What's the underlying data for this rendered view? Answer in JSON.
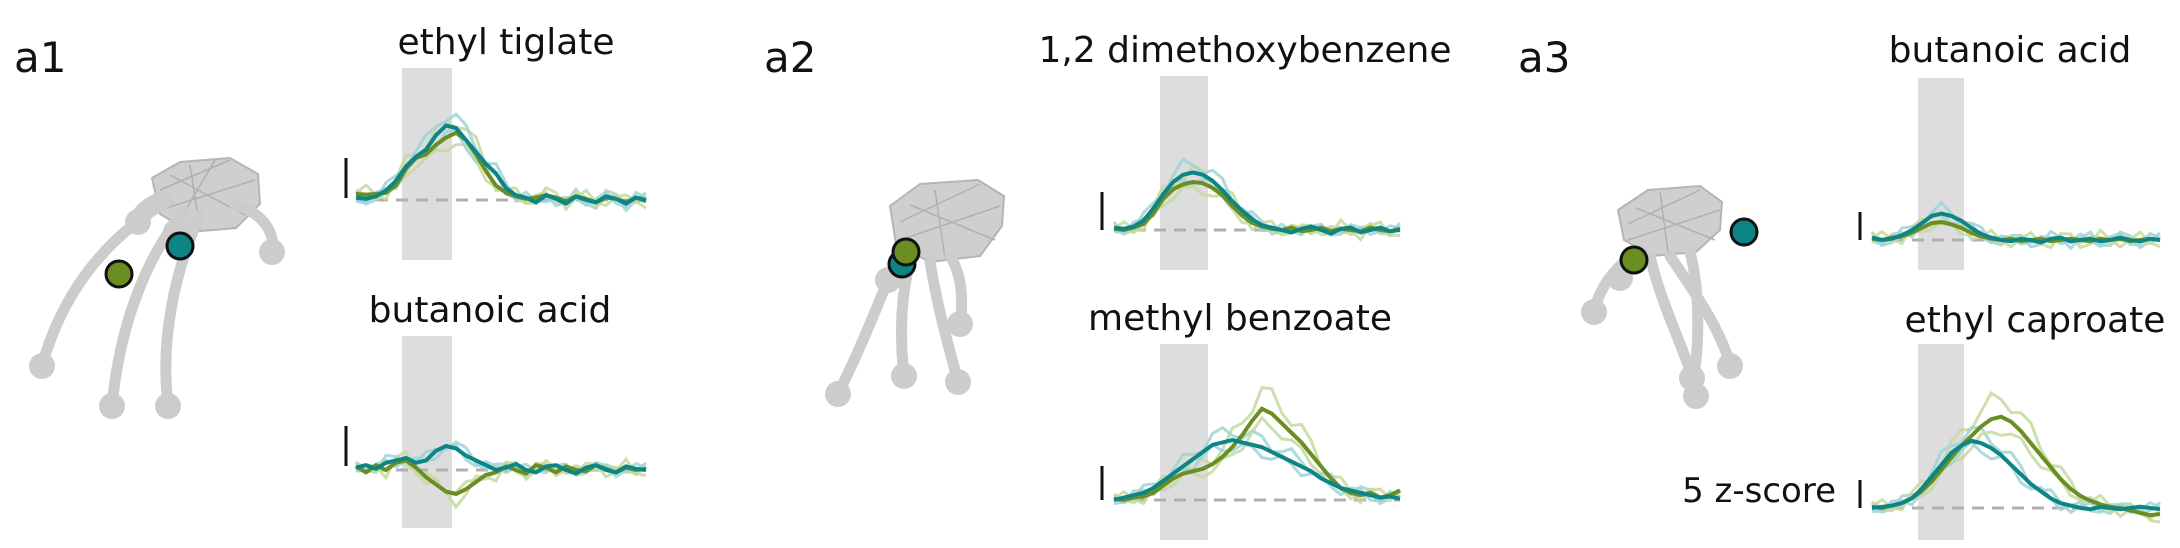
{
  "colors": {
    "green": "#6b8e23",
    "teal": "#0e8585",
    "green_light": "#c5d9a0",
    "teal_light": "#9fd3d6",
    "stim": "#dddddd",
    "neuron": "#c9c9c9",
    "dashed": "#b0b0b0"
  },
  "scale_label": "5 z-score",
  "panels": [
    {
      "id": "a1",
      "label": "a1",
      "traces": [
        {
          "odor": "ethyl tiglate",
          "green": [
            0.5,
            0.45,
            0.5,
            0.6,
            1.2,
            2.6,
            3.5,
            3.8,
            4.6,
            5.2,
            5.6,
            5.0,
            3.8,
            2.4,
            1.2,
            0.6,
            0.3,
            0.1,
            0.2,
            0.4,
            0.2,
            -0.1,
            0.3,
            0.1,
            -0.2,
            0.2,
            0.1,
            -0.2,
            0.2,
            -0.1
          ],
          "teal": [
            0.2,
            0.1,
            0.3,
            0.8,
            1.6,
            2.8,
            3.6,
            4.2,
            5.4,
            6.2,
            6.0,
            5.0,
            4.0,
            3.0,
            2.2,
            1.0,
            0.4,
            0.2,
            -0.2,
            0.4,
            0.1,
            -0.3,
            0.3,
            0.0,
            -0.2,
            0.3,
            0.1,
            -0.3,
            0.2,
            0.0
          ]
        },
        {
          "odor": "butanoic acid",
          "green": [
            0.3,
            -0.2,
            0.4,
            0.0,
            0.6,
            0.8,
            0.2,
            -0.6,
            -1.2,
            -1.8,
            -2.0,
            -1.6,
            -1.0,
            -0.4,
            -0.2,
            0.3,
            0.0,
            -0.3,
            0.4,
            0.2,
            -0.2,
            0.3,
            0.0,
            -0.1,
            0.4,
            0.1,
            -0.2,
            0.2,
            0.0,
            0.1
          ],
          "teal": [
            0.2,
            0.4,
            0.1,
            0.6,
            0.8,
            1.0,
            0.6,
            0.8,
            1.6,
            2.0,
            1.8,
            1.2,
            0.8,
            0.4,
            0.0,
            0.2,
            0.5,
            0.0,
            -0.2,
            0.3,
            0.4,
            0.0,
            -0.3,
            0.2,
            0.4,
            0.0,
            -0.2,
            0.3,
            0.1,
            0.0
          ]
        }
      ]
    },
    {
      "id": "a2",
      "label": "a2",
      "traces": [
        {
          "odor": "1,2 dimethoxybenzene",
          "green": [
            0.1,
            0.0,
            0.2,
            0.5,
            1.4,
            2.6,
            3.4,
            3.8,
            4.0,
            3.9,
            3.5,
            2.9,
            2.0,
            1.2,
            0.6,
            0.3,
            0.1,
            0.0,
            0.2,
            -0.1,
            0.0,
            0.2,
            -0.1,
            0.1,
            0.0,
            -0.1,
            0.2,
            0.0,
            -0.1,
            0.1
          ],
          "teal": [
            0.2,
            0.1,
            0.3,
            0.8,
            1.8,
            3.0,
            4.0,
            4.6,
            4.8,
            4.6,
            4.1,
            3.3,
            2.4,
            1.6,
            0.9,
            0.4,
            0.2,
            0.0,
            -0.2,
            0.1,
            0.3,
            0.0,
            -0.3,
            0.1,
            0.2,
            -0.2,
            0.0,
            0.2,
            -0.1,
            0.0
          ]
        },
        {
          "odor": "methyl benzoate",
          "green": [
            0.1,
            0.0,
            0.2,
            0.3,
            0.6,
            1.2,
            1.8,
            2.2,
            2.4,
            2.6,
            3.0,
            3.6,
            4.4,
            5.4,
            6.6,
            7.6,
            7.2,
            6.4,
            5.6,
            4.8,
            3.8,
            2.8,
            1.8,
            1.0,
            0.6,
            0.4,
            0.6,
            0.2,
            0.4,
            0.8
          ],
          "teal": [
            0.0,
            0.2,
            0.4,
            0.6,
            1.0,
            1.6,
            2.2,
            2.8,
            3.4,
            4.0,
            4.6,
            4.8,
            5.0,
            4.8,
            4.6,
            4.4,
            4.0,
            3.6,
            3.2,
            2.8,
            2.4,
            1.8,
            1.4,
            1.0,
            0.8,
            0.6,
            0.4,
            0.2,
            0.3,
            0.1
          ]
        }
      ]
    },
    {
      "id": "a3",
      "label": "a3",
      "traces": [
        {
          "odor": "butanoic acid",
          "green": [
            0.1,
            0.0,
            0.2,
            0.3,
            0.6,
            1.0,
            1.4,
            1.5,
            1.3,
            1.0,
            0.6,
            0.3,
            0.1,
            0.0,
            0.1,
            -0.1,
            0.0,
            0.1,
            -0.1,
            0.0,
            0.1,
            0.0,
            -0.1,
            0.1,
            0.0,
            0.1,
            -0.1,
            0.0,
            0.1,
            0.0
          ],
          "teal": [
            0.2,
            0.0,
            0.1,
            0.4,
            0.8,
            1.4,
            2.0,
            2.2,
            2.0,
            1.6,
            1.0,
            0.5,
            0.2,
            0.0,
            -0.1,
            0.1,
            0.0,
            -0.2,
            0.1,
            0.2,
            -0.1,
            0.0,
            0.1,
            -0.1,
            0.0,
            0.2,
            0.0,
            -0.1,
            0.1,
            0.0
          ]
        },
        {
          "odor": "ethyl caproate",
          "green": [
            0.1,
            0.0,
            0.2,
            0.4,
            0.8,
            1.4,
            2.2,
            3.2,
            4.2,
            5.2,
            6.0,
            6.8,
            7.4,
            7.6,
            7.2,
            6.4,
            5.4,
            4.4,
            3.4,
            2.4,
            1.6,
            1.0,
            0.6,
            0.3,
            0.1,
            0.0,
            -0.2,
            -0.4,
            -0.6,
            -0.5
          ],
          "teal": [
            0.0,
            0.1,
            0.2,
            0.4,
            0.8,
            1.6,
            2.6,
            3.6,
            4.6,
            5.2,
            5.6,
            5.4,
            5.0,
            4.4,
            3.6,
            2.8,
            2.0,
            1.4,
            0.8,
            0.4,
            0.2,
            0.0,
            -0.1,
            0.1,
            0.0,
            -0.1,
            0.0,
            0.1,
            0.0,
            -0.1
          ]
        }
      ]
    }
  ]
}
